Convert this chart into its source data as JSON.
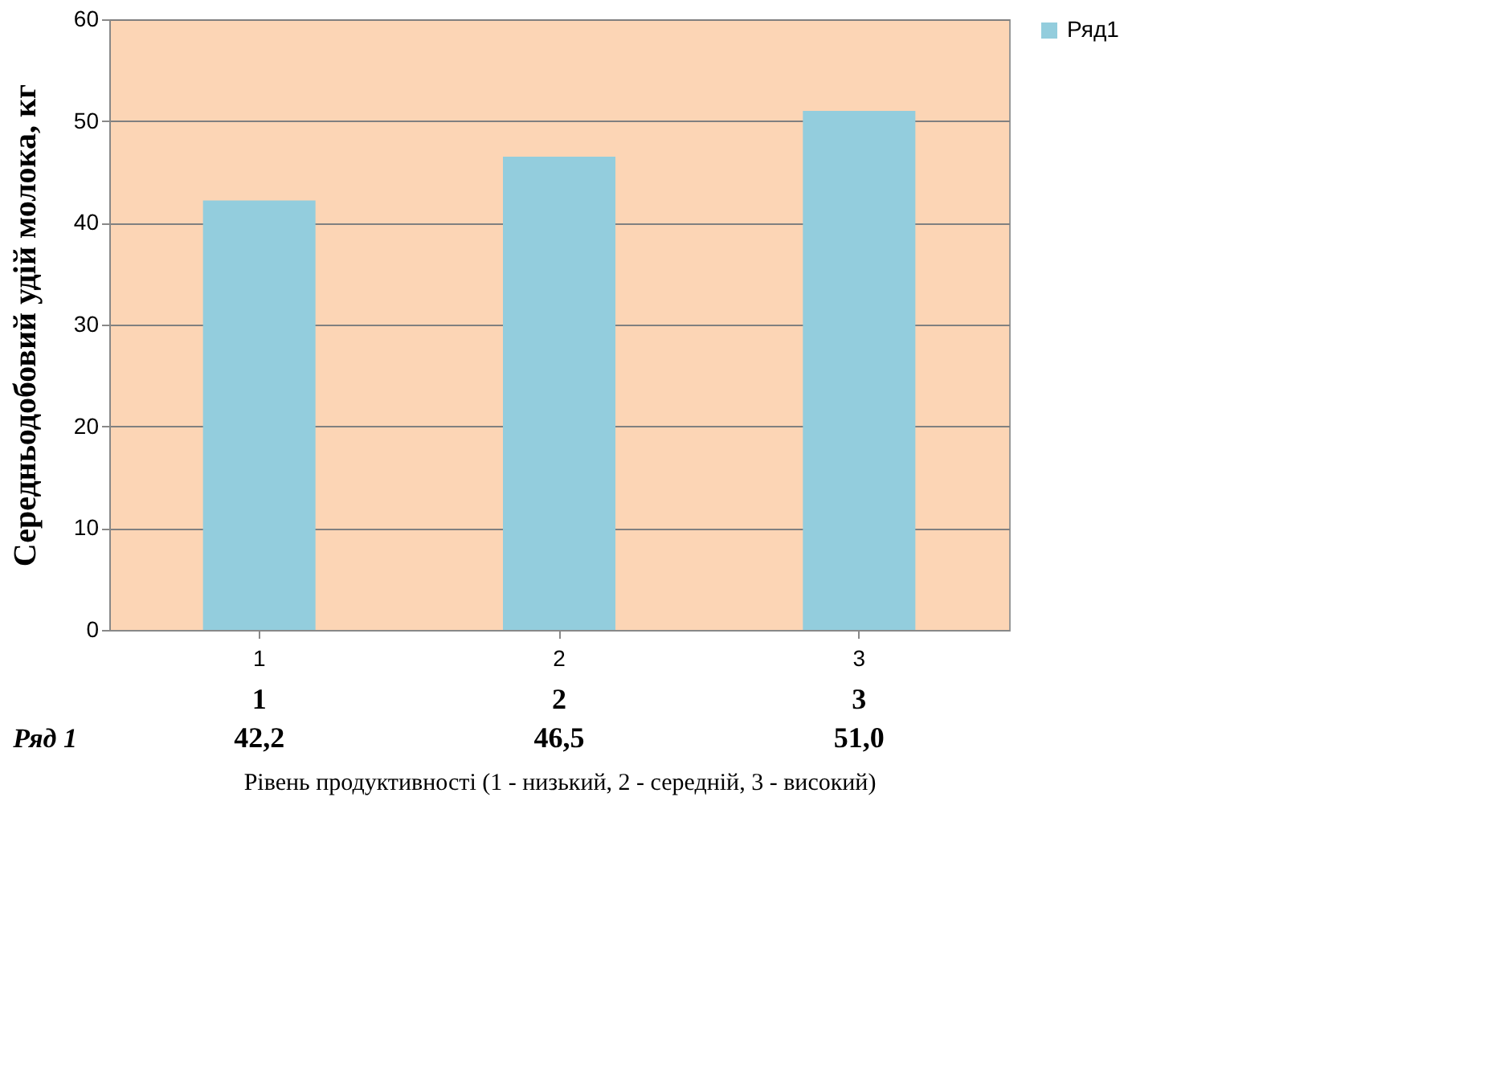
{
  "chart_data": {
    "type": "bar",
    "ylabel": "Середньодобовий удій молока, кг",
    "xlabel": "Рівень продуктивності (1 - низький, 2 - середній, 3 - високий)",
    "categories": [
      "1",
      "2",
      "3"
    ],
    "series": [
      {
        "name": "Ряд1",
        "color": "#93cddd",
        "values": [
          42.2,
          46.5,
          51.0
        ],
        "value_labels": [
          "42,2",
          "46,5",
          "51,0"
        ]
      }
    ],
    "annotations": [
      "Ряд 1"
    ],
    "ylim": [
      0,
      60
    ],
    "yticks": [
      0,
      10,
      20,
      30,
      40,
      50,
      60
    ],
    "grid": "y",
    "legend": "right"
  }
}
